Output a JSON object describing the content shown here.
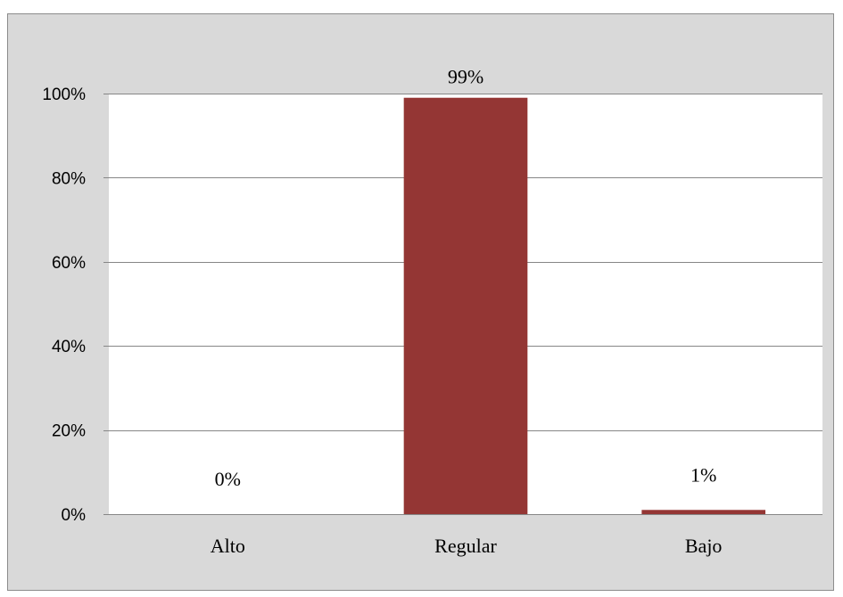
{
  "chart_data": {
    "type": "bar",
    "title": "",
    "xlabel": "",
    "ylabel": "",
    "categories": [
      "Alto",
      "Regular",
      "Bajo"
    ],
    "values": [
      0,
      99,
      1
    ],
    "data_labels": [
      "0%",
      "99%",
      "1%"
    ],
    "ylim": [
      0,
      100
    ],
    "y_ticks": [
      0,
      20,
      40,
      60,
      80,
      100
    ],
    "y_tick_labels": [
      "0%",
      "20%",
      "40%",
      "60%",
      "80%",
      "100%"
    ],
    "grid": true,
    "legend": "none",
    "colors": {
      "bar": "#943634",
      "plot_background": "#ffffff",
      "chart_background": "#d9d9d9",
      "gridline": "#868686"
    }
  }
}
